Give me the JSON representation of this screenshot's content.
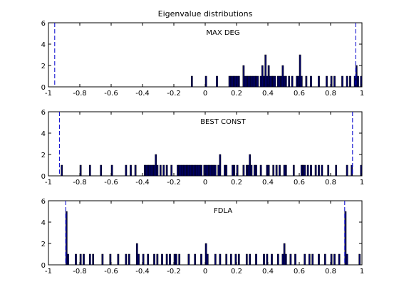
{
  "chart_data": {
    "type": "bar",
    "title": "Eigenvalue distributions",
    "xlim": [
      -1,
      1
    ],
    "ylim": [
      0,
      6
    ],
    "x_ticks": [
      -1,
      -0.8,
      -0.6,
      -0.4,
      -0.2,
      0,
      0.2,
      0.4,
      0.6,
      0.8,
      1
    ],
    "y_ticks": [
      0,
      2,
      4,
      6
    ],
    "x_tick_labels": [
      "-1",
      "-0.8",
      "-0.6",
      "-0.4",
      "-0.2",
      "0",
      "0.2",
      "0.4",
      "0.6",
      "0.8",
      "1"
    ],
    "y_tick_labels": [
      "0",
      "2",
      "4",
      "6"
    ],
    "bin_width": 0.01,
    "bar_color": "#000066",
    "grid": false,
    "panels": [
      {
        "label": "MAX DEG",
        "dashed_lines_x": [
          -0.96,
          0.96
        ],
        "bins": [
          [
            -0.09,
            1
          ],
          [
            0.0,
            1
          ],
          [
            0.07,
            1
          ],
          [
            0.15,
            1
          ],
          [
            0.16,
            1
          ],
          [
            0.17,
            1
          ],
          [
            0.18,
            1
          ],
          [
            0.19,
            1
          ],
          [
            0.2,
            1
          ],
          [
            0.21,
            1
          ],
          [
            0.24,
            2
          ],
          [
            0.25,
            1
          ],
          [
            0.26,
            1
          ],
          [
            0.27,
            1
          ],
          [
            0.28,
            1
          ],
          [
            0.29,
            1
          ],
          [
            0.3,
            1
          ],
          [
            0.31,
            1
          ],
          [
            0.32,
            1
          ],
          [
            0.33,
            1
          ],
          [
            0.35,
            1
          ],
          [
            0.36,
            2
          ],
          [
            0.37,
            1
          ],
          [
            0.38,
            3
          ],
          [
            0.39,
            1
          ],
          [
            0.4,
            2
          ],
          [
            0.41,
            1
          ],
          [
            0.42,
            1
          ],
          [
            0.43,
            1
          ],
          [
            0.44,
            1
          ],
          [
            0.46,
            1
          ],
          [
            0.47,
            1
          ],
          [
            0.48,
            1
          ],
          [
            0.49,
            2
          ],
          [
            0.5,
            1
          ],
          [
            0.51,
            1
          ],
          [
            0.53,
            1
          ],
          [
            0.55,
            1
          ],
          [
            0.58,
            1
          ],
          [
            0.59,
            1
          ],
          [
            0.6,
            3
          ],
          [
            0.61,
            1
          ],
          [
            0.64,
            1
          ],
          [
            0.67,
            1
          ],
          [
            0.72,
            1
          ],
          [
            0.77,
            1
          ],
          [
            0.8,
            1
          ],
          [
            0.82,
            1
          ],
          [
            0.87,
            1
          ],
          [
            0.9,
            1
          ],
          [
            0.92,
            1
          ],
          [
            0.95,
            1
          ],
          [
            0.96,
            2
          ],
          [
            0.97,
            1
          ],
          [
            0.99,
            1
          ]
        ]
      },
      {
        "label": "BEST CONST",
        "dashed_lines_x": [
          -0.93,
          0.94
        ],
        "bins": [
          [
            -0.92,
            1
          ],
          [
            -0.8,
            1
          ],
          [
            -0.74,
            1
          ],
          [
            -0.67,
            1
          ],
          [
            -0.6,
            1
          ],
          [
            -0.51,
            1
          ],
          [
            -0.48,
            1
          ],
          [
            -0.45,
            1
          ],
          [
            -0.39,
            1
          ],
          [
            -0.38,
            1
          ],
          [
            -0.37,
            1
          ],
          [
            -0.36,
            1
          ],
          [
            -0.35,
            1
          ],
          [
            -0.34,
            1
          ],
          [
            -0.33,
            1
          ],
          [
            -0.32,
            2
          ],
          [
            -0.31,
            1
          ],
          [
            -0.29,
            1
          ],
          [
            -0.27,
            1
          ],
          [
            -0.25,
            1
          ],
          [
            -0.22,
            1
          ],
          [
            -0.18,
            1
          ],
          [
            -0.17,
            1
          ],
          [
            -0.16,
            1
          ],
          [
            -0.15,
            1
          ],
          [
            -0.14,
            1
          ],
          [
            -0.13,
            1
          ],
          [
            -0.12,
            1
          ],
          [
            -0.11,
            1
          ],
          [
            -0.1,
            1
          ],
          [
            -0.09,
            1
          ],
          [
            -0.08,
            1
          ],
          [
            -0.07,
            1
          ],
          [
            -0.06,
            1
          ],
          [
            -0.05,
            1
          ],
          [
            -0.04,
            1
          ],
          [
            -0.03,
            1
          ],
          [
            -0.01,
            1
          ],
          [
            0.0,
            1
          ],
          [
            0.01,
            1
          ],
          [
            0.02,
            1
          ],
          [
            0.03,
            1
          ],
          [
            0.04,
            1
          ],
          [
            0.05,
            1
          ],
          [
            0.06,
            1
          ],
          [
            0.08,
            1
          ],
          [
            0.09,
            2
          ],
          [
            0.12,
            1
          ],
          [
            0.13,
            1
          ],
          [
            0.17,
            1
          ],
          [
            0.18,
            1
          ],
          [
            0.2,
            1
          ],
          [
            0.24,
            1
          ],
          [
            0.26,
            1
          ],
          [
            0.27,
            1
          ],
          [
            0.28,
            2
          ],
          [
            0.29,
            1
          ],
          [
            0.31,
            1
          ],
          [
            0.32,
            1
          ],
          [
            0.35,
            1
          ],
          [
            0.39,
            1
          ],
          [
            0.4,
            1
          ],
          [
            0.43,
            1
          ],
          [
            0.45,
            1
          ],
          [
            0.47,
            1
          ],
          [
            0.5,
            1
          ],
          [
            0.51,
            1
          ],
          [
            0.56,
            1
          ],
          [
            0.61,
            1
          ],
          [
            0.62,
            1
          ],
          [
            0.63,
            1
          ],
          [
            0.65,
            1
          ],
          [
            0.67,
            1
          ],
          [
            0.7,
            1
          ],
          [
            0.72,
            1
          ],
          [
            0.74,
            1
          ],
          [
            0.78,
            1
          ],
          [
            0.83,
            1
          ],
          [
            0.9,
            1
          ],
          [
            0.93,
            1
          ],
          [
            0.99,
            1
          ]
        ]
      },
      {
        "label": "FDLA",
        "dashed_lines_x": [
          -0.89,
          0.89
        ],
        "bins": [
          [
            -0.89,
            5
          ],
          [
            -0.88,
            1
          ],
          [
            -0.83,
            1
          ],
          [
            -0.8,
            1
          ],
          [
            -0.78,
            1
          ],
          [
            -0.74,
            1
          ],
          [
            -0.72,
            1
          ],
          [
            -0.66,
            1
          ],
          [
            -0.61,
            1
          ],
          [
            -0.56,
            1
          ],
          [
            -0.51,
            1
          ],
          [
            -0.49,
            1
          ],
          [
            -0.44,
            2
          ],
          [
            -0.43,
            1
          ],
          [
            -0.4,
            1
          ],
          [
            -0.37,
            1
          ],
          [
            -0.33,
            1
          ],
          [
            -0.31,
            1
          ],
          [
            -0.28,
            1
          ],
          [
            -0.25,
            1
          ],
          [
            -0.23,
            1
          ],
          [
            -0.2,
            1
          ],
          [
            -0.19,
            1
          ],
          [
            -0.17,
            1
          ],
          [
            -0.11,
            1
          ],
          [
            -0.07,
            1
          ],
          [
            -0.03,
            1
          ],
          [
            0.0,
            2
          ],
          [
            0.01,
            1
          ],
          [
            0.06,
            1
          ],
          [
            0.09,
            1
          ],
          [
            0.13,
            1
          ],
          [
            0.16,
            1
          ],
          [
            0.19,
            1
          ],
          [
            0.21,
            1
          ],
          [
            0.26,
            1
          ],
          [
            0.28,
            1
          ],
          [
            0.32,
            1
          ],
          [
            0.37,
            1
          ],
          [
            0.39,
            1
          ],
          [
            0.42,
            1
          ],
          [
            0.46,
            1
          ],
          [
            0.49,
            1
          ],
          [
            0.5,
            2
          ],
          [
            0.51,
            1
          ],
          [
            0.54,
            1
          ],
          [
            0.57,
            1
          ],
          [
            0.63,
            1
          ],
          [
            0.66,
            1
          ],
          [
            0.68,
            1
          ],
          [
            0.72,
            1
          ],
          [
            0.76,
            1
          ],
          [
            0.8,
            1
          ],
          [
            0.82,
            1
          ],
          [
            0.85,
            1
          ],
          [
            0.89,
            5
          ],
          [
            0.9,
            1
          ],
          [
            0.98,
            1
          ]
        ]
      }
    ]
  }
}
